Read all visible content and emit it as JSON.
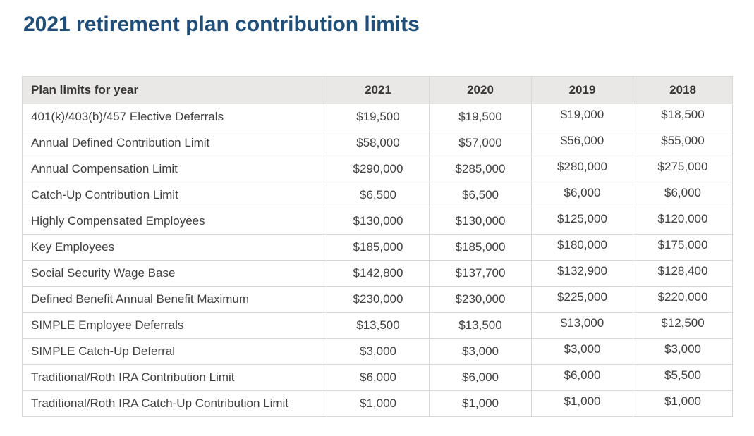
{
  "page": {
    "title": "2021 retirement plan contribution limits"
  },
  "colors": {
    "title_accent": "#1f4e79",
    "header_background": "#e9e8e6",
    "table_border": "#d8d8d5",
    "body_text": "#404040",
    "header_text": "#363636"
  },
  "table": {
    "columns": [
      "Plan limits for year",
      "2021",
      "2020",
      "2019",
      "2018"
    ],
    "rows": [
      {
        "label": "401(k)/403(b)/457 Elective Deferrals",
        "values": [
          "$19,500",
          "$19,500",
          "$19,000",
          "$18,500"
        ]
      },
      {
        "label": "Annual Defined Contribution Limit",
        "values": [
          "$58,000",
          "$57,000",
          "$56,000",
          "$55,000"
        ]
      },
      {
        "label": "Annual Compensation Limit",
        "values": [
          "$290,000",
          "$285,000",
          "$280,000",
          "$275,000"
        ]
      },
      {
        "label": "Catch-Up Contribution Limit",
        "values": [
          "$6,500",
          "$6,500",
          "$6,000",
          "$6,000"
        ]
      },
      {
        "label": "Highly Compensated Employees",
        "values": [
          "$130,000",
          "$130,000",
          "$125,000",
          "$120,000"
        ]
      },
      {
        "label": "Key Employees",
        "values": [
          "$185,000",
          "$185,000",
          "$180,000",
          "$175,000"
        ]
      },
      {
        "label": "Social Security Wage Base",
        "values": [
          "$142,800",
          "$137,700",
          "$132,900",
          "$128,400"
        ]
      },
      {
        "label": "Defined Benefit Annual Benefit Maximum",
        "values": [
          "$230,000",
          "$230,000",
          "$225,000",
          "$220,000"
        ]
      },
      {
        "label": "SIMPLE Employee Deferrals",
        "values": [
          "$13,500",
          "$13,500",
          "$13,000",
          "$12,500"
        ]
      },
      {
        "label": "SIMPLE Catch-Up Deferral",
        "values": [
          "$3,000",
          "$3,000",
          "$3,000",
          "$3,000"
        ]
      },
      {
        "label": "Traditional/Roth IRA Contribution Limit",
        "values": [
          "$6,000",
          "$6,000",
          "$6,000",
          "$5,500"
        ]
      },
      {
        "label": "Traditional/Roth IRA Catch-Up Contribution Limit",
        "values": [
          "$1,000",
          "$1,000",
          "$1,000",
          "$1,000"
        ]
      }
    ]
  }
}
